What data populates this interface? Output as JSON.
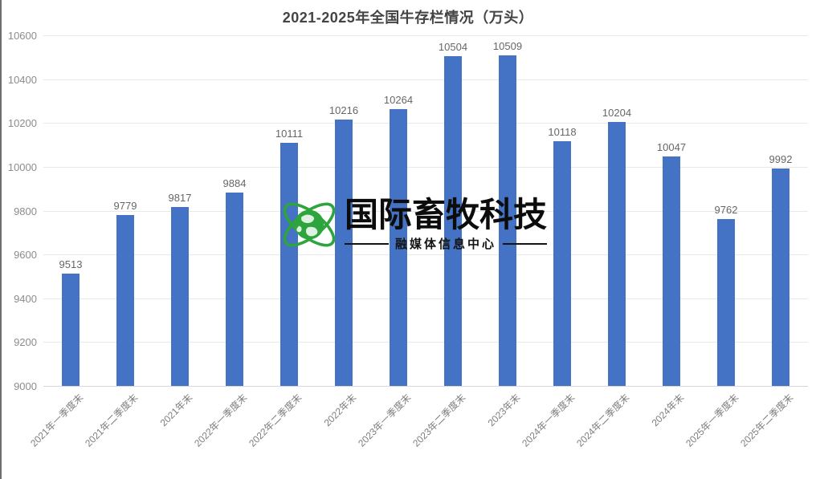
{
  "chart_data": {
    "type": "bar",
    "title": "2021-2025年全国牛存栏情况（万头）",
    "categories": [
      "2021年一季度末",
      "2021年二季度末",
      "2021年末",
      "2022年一季度末",
      "2022年二季度末",
      "2022年末",
      "2023年一季度末",
      "2023年二季度末",
      "2023年末",
      "2024年一季度末",
      "2024年二季度末",
      "2024年末",
      "2025年一季度末",
      "2025年二季度末"
    ],
    "values": [
      9513,
      9779,
      9817,
      9884,
      10111,
      10216,
      10264,
      10504,
      10509,
      10118,
      10204,
      10047,
      9762,
      9992
    ],
    "yticks": [
      9000,
      9200,
      9400,
      9600,
      9800,
      10000,
      10200,
      10400,
      10600
    ],
    "ylim": [
      9000,
      10600
    ],
    "xlabel": "",
    "ylabel": "",
    "grid": "horizontal",
    "legend": "none",
    "data_labels": true,
    "bar_color": "#4472C4",
    "x_tick_rotation_deg": 45
  },
  "watermark": {
    "brand": "国际畜牧科技",
    "subtitle": "融媒体信息中心",
    "globe_color": "#2EA43C",
    "text_color": "#0c0c0c"
  },
  "colors": {
    "background": "#ffffff",
    "left_edge": "#6e6e6e",
    "gridline": "#e9e9e9",
    "axis_line": "#d7d7d7",
    "tick_label": "#8c8c8c",
    "data_label": "#666666",
    "title": "#444444"
  }
}
